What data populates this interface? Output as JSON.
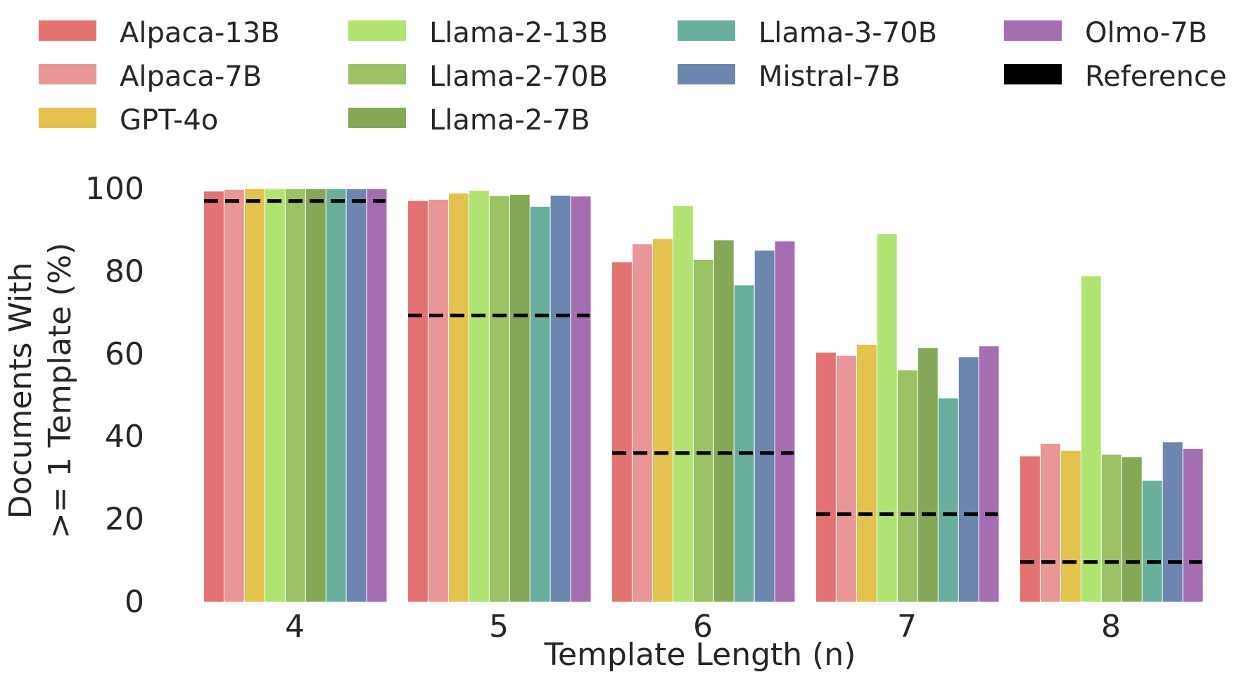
{
  "chart_data": {
    "type": "bar",
    "title": "",
    "xlabel": "Template Length (n)",
    "ylabel_lines": [
      "Documents With",
      ">= 1 Template (%)"
    ],
    "categories": [
      "4",
      "5",
      "6",
      "7",
      "8"
    ],
    "ylim": [
      0,
      100
    ],
    "yticks": [
      "0",
      "20",
      "40",
      "60",
      "80",
      "100"
    ],
    "grid": false,
    "legend_position": "top",
    "series": [
      {
        "name": "Alpaca-13B",
        "color": "#e37373",
        "values": [
          99.3,
          97.0,
          82.2,
          60.3,
          35.2
        ]
      },
      {
        "name": "Alpaca-7B",
        "color": "#e89696",
        "values": [
          99.7,
          97.3,
          86.5,
          59.5,
          38.2
        ]
      },
      {
        "name": "GPT-4o",
        "color": "#e3c24f",
        "values": [
          99.9,
          98.8,
          87.8,
          62.2,
          36.5
        ]
      },
      {
        "name": "Llama-2-13B",
        "color": "#b0e372",
        "values": [
          99.9,
          99.5,
          95.8,
          89.0,
          78.8
        ]
      },
      {
        "name": "Llama-2-70B",
        "color": "#9bc264",
        "values": [
          99.9,
          98.2,
          82.8,
          56.0,
          35.6
        ]
      },
      {
        "name": "Llama-2-7B",
        "color": "#84a857",
        "values": [
          99.9,
          98.5,
          87.5,
          61.4,
          35.0
        ]
      },
      {
        "name": "Llama-3-70B",
        "color": "#6aaf9d",
        "values": [
          99.9,
          95.6,
          76.6,
          49.2,
          29.3
        ]
      },
      {
        "name": "Mistral-7B",
        "color": "#6d86b0",
        "values": [
          99.9,
          98.3,
          85.0,
          59.2,
          38.6
        ]
      },
      {
        "name": "Olmo-7B",
        "color": "#a46eb0",
        "values": [
          99.9,
          98.1,
          87.2,
          61.8,
          37.0
        ]
      }
    ],
    "reference": {
      "name": "Reference",
      "color": "#000000",
      "values": [
        97.0,
        69.3,
        36.0,
        21.2,
        9.6
      ]
    }
  }
}
